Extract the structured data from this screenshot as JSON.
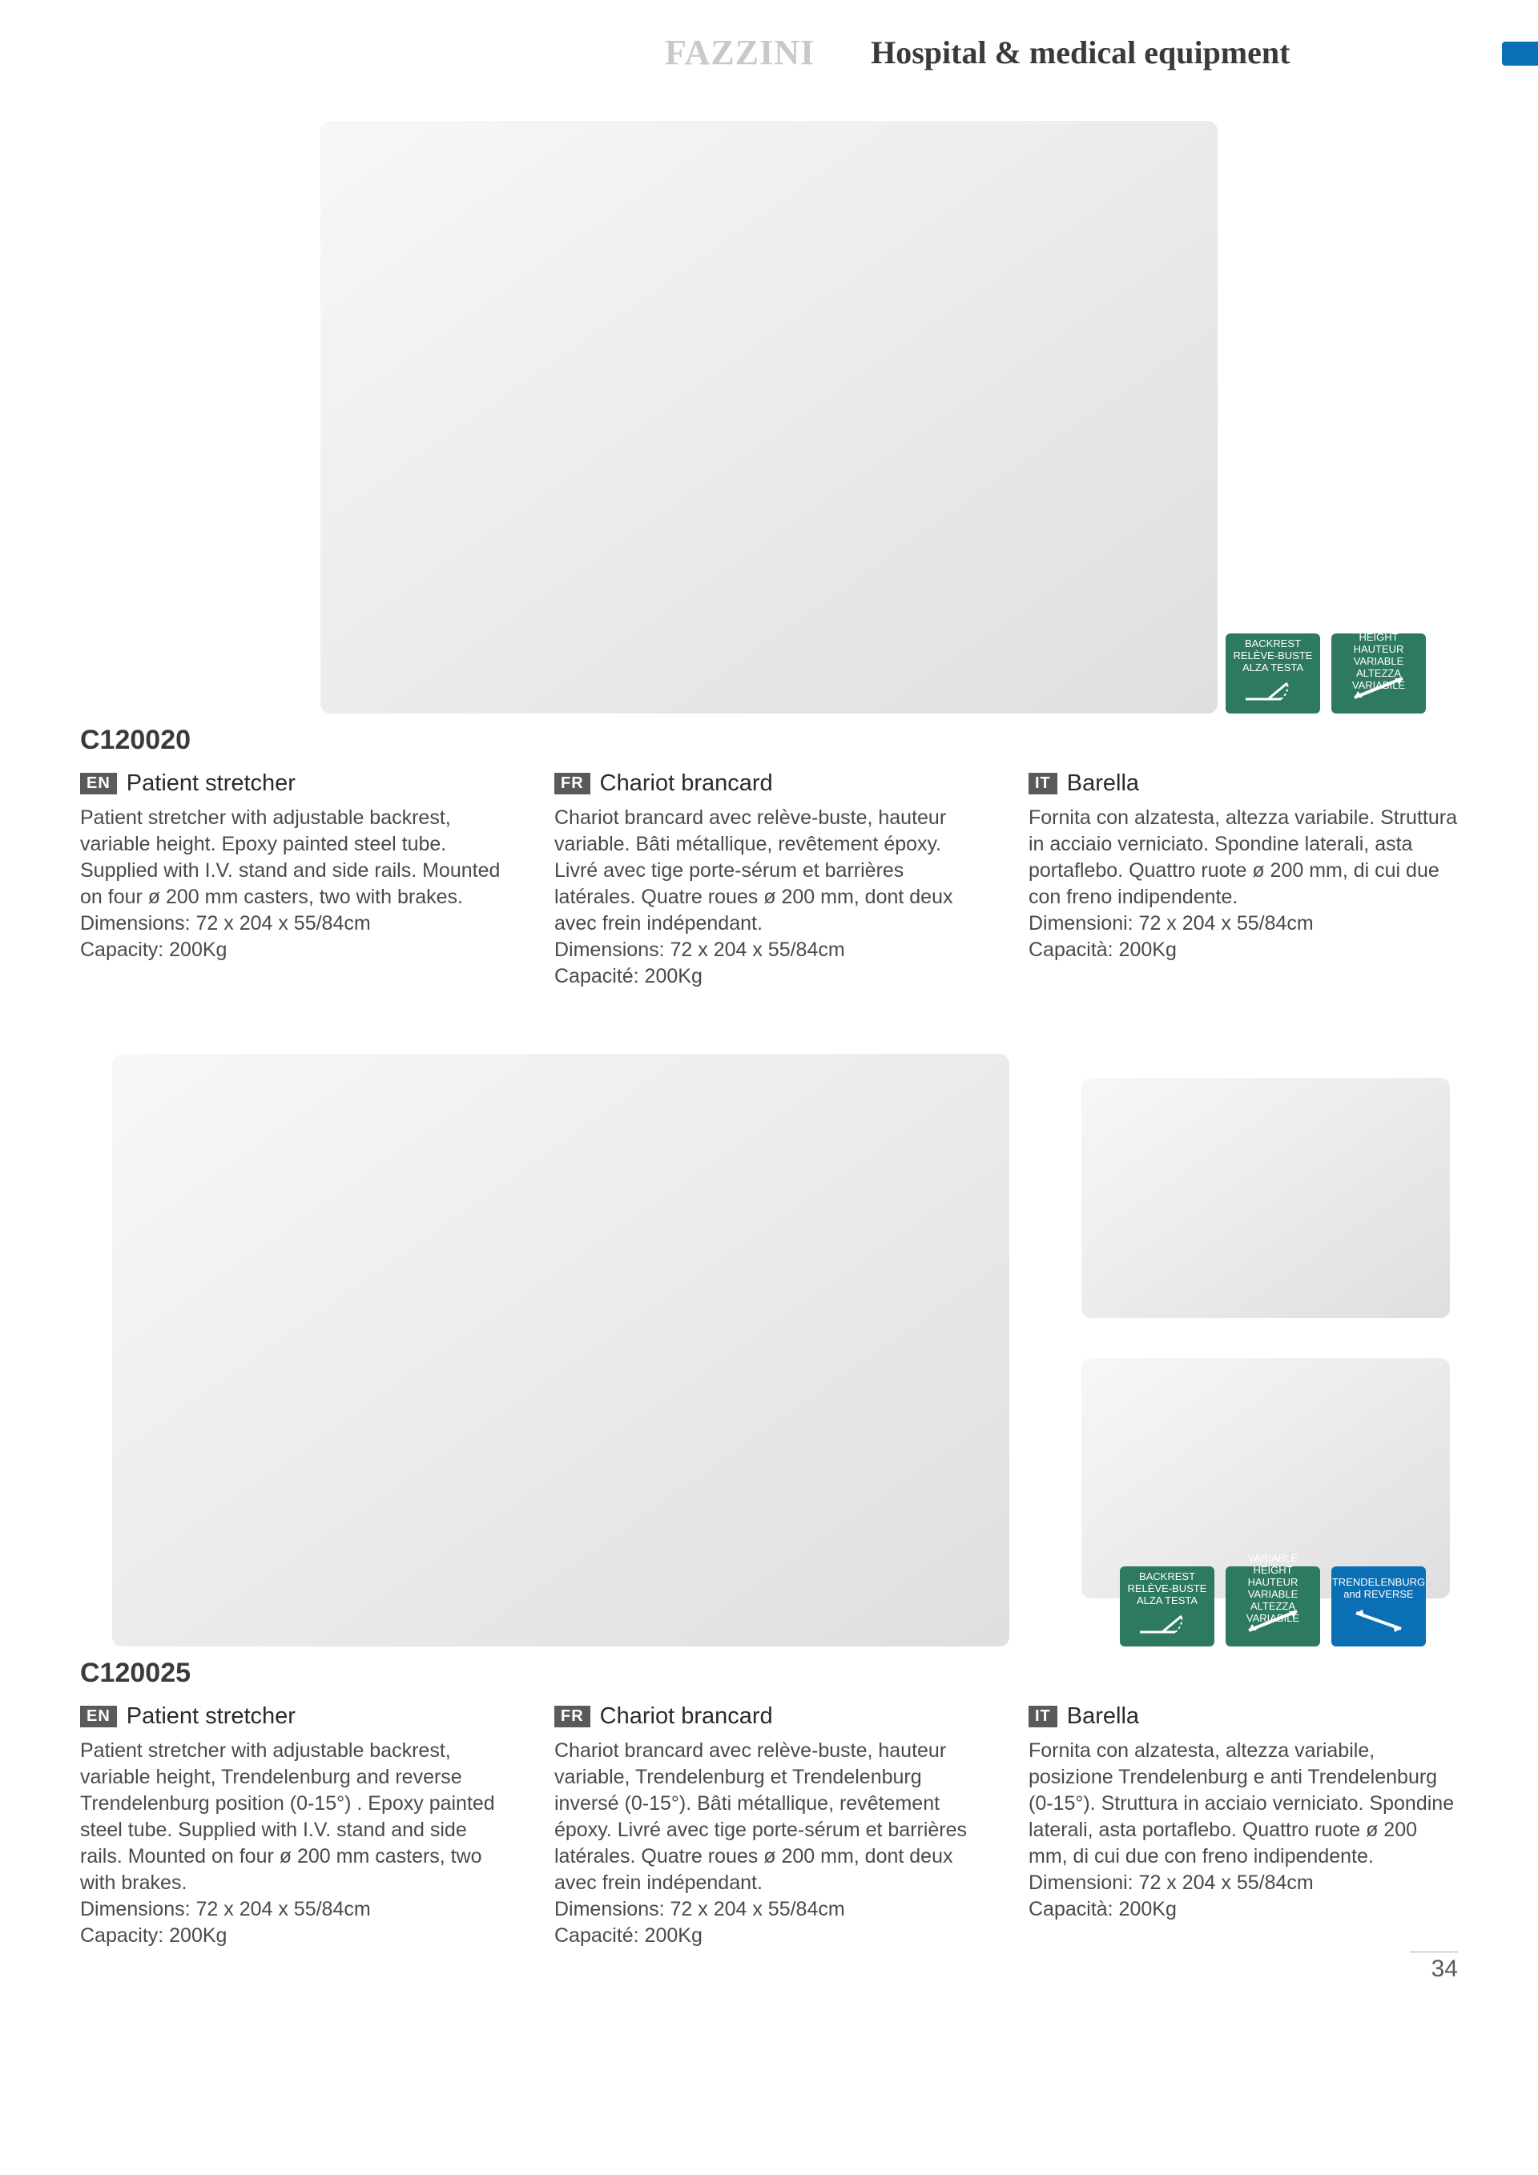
{
  "header": {
    "brand": "FAZZINI",
    "category": "Hospital & medical equipment",
    "bar_color": "#0a6fb5"
  },
  "badge_colors": {
    "green": "#2e7a5e",
    "blue": "#0a6fb5"
  },
  "products": [
    {
      "code": "C120020",
      "badges": [
        {
          "color": "green",
          "label": "BACKREST\nRELÈVE-BUSTE\nALZA TESTA",
          "icon": "backrest"
        },
        {
          "color": "green",
          "label": "VARIABLE HEIGHT\nHAUTEUR VARIABLE\nALTEZZA VARIABILE",
          "icon": "varheight"
        }
      ],
      "columns": [
        {
          "lang": "EN",
          "title": "Patient stretcher",
          "body": "Patient stretcher with adjustable backrest, variable height. Epoxy painted steel tube. Supplied with I.V. stand and side rails. Mounted on four ø 200 mm casters, two with brakes.\nDimensions: 72 x 204 x 55/84cm\nCapacity: 200Kg"
        },
        {
          "lang": "FR",
          "title": "Chariot brancard",
          "body": "Chariot brancard avec relève-buste, hauteur variable. Bâti métallique, revêtement époxy. Livré avec tige porte-sérum et barrières latérales. Quatre roues ø 200 mm, dont deux avec frein indépendant.\nDimensions: 72 x 204 x 55/84cm\nCapacité: 200Kg"
        },
        {
          "lang": "IT",
          "title": "Barella",
          "body": "Fornita con alzatesta, altezza variabile. Struttura in acciaio verniciato. Spondine laterali, asta portaflebo. Quattro ruote ø 200 mm, di cui due con freno indipendente.\nDimensioni: 72 x 204 x 55/84cm\nCapacità: 200Kg"
        }
      ]
    },
    {
      "code": "C120025",
      "badges": [
        {
          "color": "green",
          "label": "BACKREST\nRELÈVE-BUSTE\nALZA TESTA",
          "icon": "backrest"
        },
        {
          "color": "green",
          "label": "VARIABLE HEIGHT\nHAUTEUR VARIABLE\nALTEZZA VARIABILE",
          "icon": "varheight"
        },
        {
          "color": "blue",
          "label": "TRENDELENBURG\nand REVERSE",
          "icon": "trend"
        }
      ],
      "columns": [
        {
          "lang": "EN",
          "title": "Patient stretcher",
          "body": "Patient stretcher with adjustable backrest, variable height, Trendelenburg and reverse Trendelenburg position (0-15°) . Epoxy painted steel tube. Supplied with I.V. stand and side rails. Mounted on four ø 200 mm casters, two with brakes.\nDimensions: 72 x 204 x 55/84cm\nCapacity: 200Kg"
        },
        {
          "lang": "FR",
          "title": "Chariot brancard",
          "body": "Chariot brancard avec relève-buste, hauteur variable, Trendelenburg et Trendelenburg inversé (0-15°). Bâti métallique, revêtement époxy. Livré avec tige porte-sérum et barrières latérales. Quatre roues ø 200 mm, dont deux avec frein indépendant.\nDimensions: 72 x 204 x 55/84cm\nCapacité: 200Kg"
        },
        {
          "lang": "IT",
          "title": "Barella",
          "body": "Fornita con alzatesta, altezza variabile, posizione Trendelenburg e anti Trendelenburg (0-15°). Struttura in acciaio verniciato. Spondine laterali, asta portaflebo. Quattro ruote ø 200 mm, di cui due con freno indipendente.\nDimensioni: 72 x 204 x 55/84cm\nCapacità: 200Kg"
        }
      ]
    }
  ],
  "page_number": "34"
}
